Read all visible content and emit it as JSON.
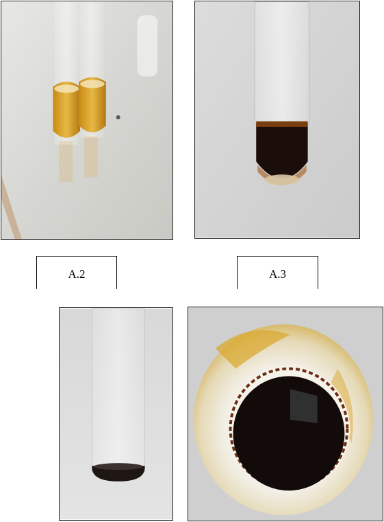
{
  "figure": {
    "labels": {
      "a2": "A.2",
      "a3": "A.3"
    }
  },
  "colors": {
    "amber_liquid": "#d99a1e",
    "dark_liquid": "#1b0d0a",
    "photo_background": "#dedede"
  },
  "photos": [
    {
      "name": "two-test-tubes-amber-solution"
    },
    {
      "name": "test-tube-dark-solution-layered"
    },
    {
      "name": "test-tube-small-dark-residue"
    },
    {
      "name": "tube-top-view-dark-solution"
    }
  ]
}
